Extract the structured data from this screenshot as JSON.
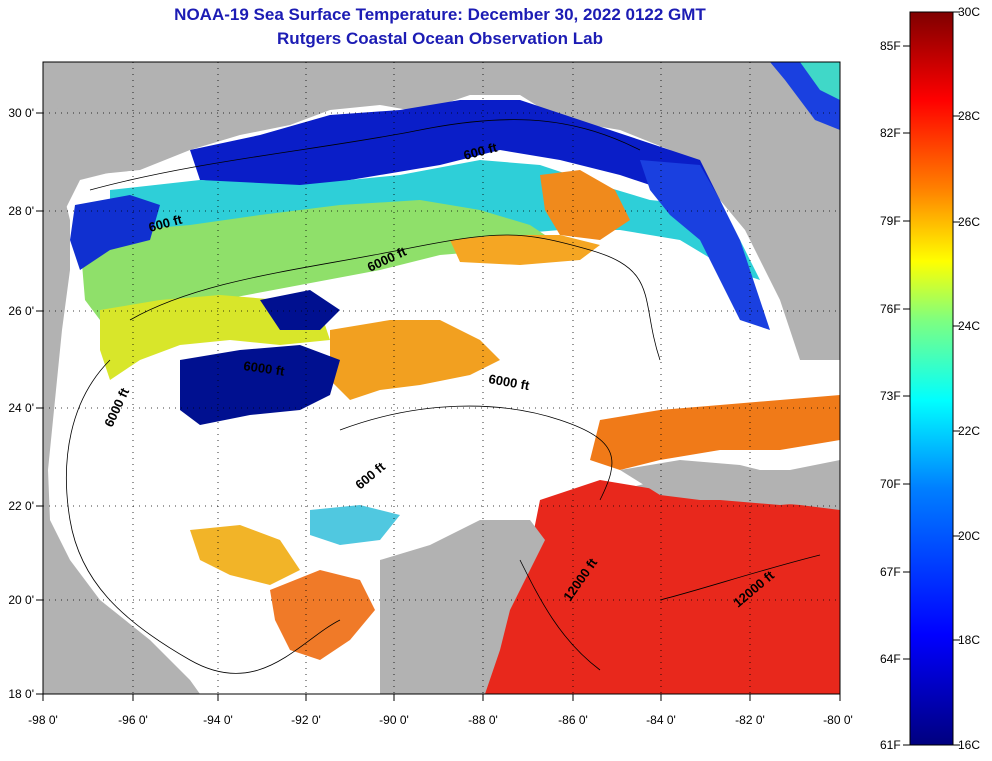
{
  "title": {
    "line1": "NOAA-19 Sea Surface Temperature:  December 30, 2022 0122 GMT",
    "line2": "Rutgers Coastal Ocean Observation Lab"
  },
  "map": {
    "lat_ticks": [
      "30 0'",
      "28 0'",
      "26 0'",
      "24 0'",
      "22 0'",
      "20 0'",
      "18 0'"
    ],
    "lon_ticks": [
      "-98 0'",
      "-96 0'",
      "-94 0'",
      "-92 0'",
      "-90 0'",
      "-88 0'",
      "-86 0'",
      "-84 0'",
      "-82 0'",
      "-80 0'"
    ],
    "contour_labels": [
      "600 ft",
      "600 ft",
      "6000 ft",
      "6000 ft",
      "6000 ft",
      "6000 ft",
      "600 ft",
      "12000 ft",
      "12000 ft"
    ],
    "colors": {
      "land": "#b2b2b2",
      "cloud": "#ffffff"
    }
  },
  "colorbar": {
    "fahrenheit": [
      "85F",
      "82F",
      "79F",
      "76F",
      "73F",
      "70F",
      "67F",
      "64F",
      "61F"
    ],
    "celsius": [
      "30C",
      "28C",
      "26C",
      "24C",
      "22C",
      "20C",
      "18C",
      "16C"
    ],
    "colors": [
      "#00007f",
      "#0000ff",
      "#007fff",
      "#00ffff",
      "#7fff7f",
      "#ffff00",
      "#ff7f00",
      "#ff0000",
      "#7f0000"
    ]
  }
}
